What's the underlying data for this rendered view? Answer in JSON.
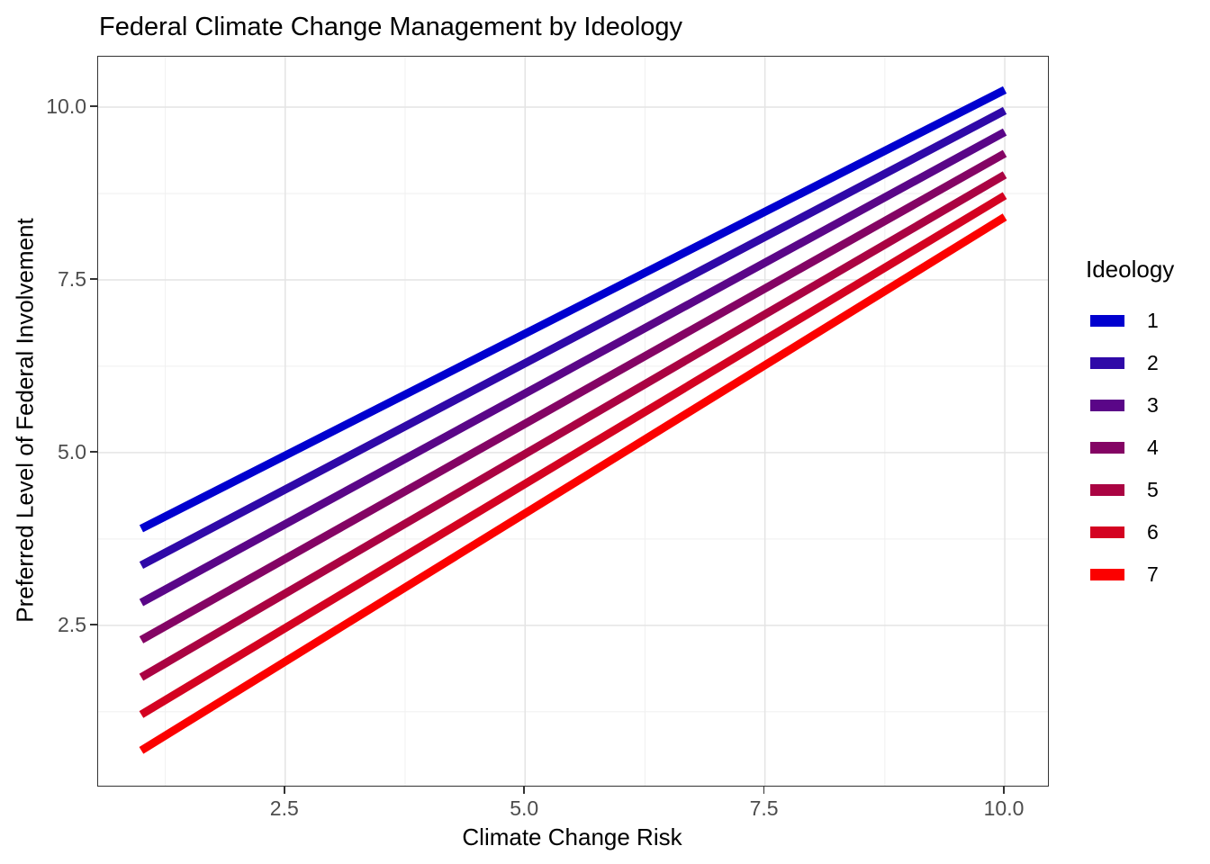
{
  "page": {
    "title": "Federal Climate Change Management by Ideology"
  },
  "chart_data": {
    "type": "line",
    "title": "Federal Climate Change Management by Ideology",
    "xlabel": "Climate Change Risk",
    "ylabel": "Preferred Level of Federal Involvement",
    "xlim": [
      0.55,
      10.45
    ],
    "ylim": [
      0.18,
      10.73
    ],
    "grid": true,
    "legend_position": "right",
    "x_ticks": [
      {
        "v": 2.5,
        "label": "2.5"
      },
      {
        "v": 5.0,
        "label": "5.0"
      },
      {
        "v": 7.5,
        "label": "7.5"
      },
      {
        "v": 10.0,
        "label": "10.0"
      }
    ],
    "y_ticks": [
      {
        "v": 2.5,
        "label": "2.5"
      },
      {
        "v": 5.0,
        "label": "5.0"
      },
      {
        "v": 7.5,
        "label": "7.5"
      },
      {
        "v": 10.0,
        "label": "10.0"
      }
    ],
    "x_minor": [
      1.25,
      3.75,
      6.25,
      8.75
    ],
    "y_minor": [
      1.25,
      3.75,
      6.25,
      8.75
    ],
    "x": [
      1,
      10
    ],
    "series": [
      {
        "name": "1",
        "color": "#0000CF",
        "values": [
          3.9,
          10.25
        ]
      },
      {
        "name": "2",
        "color": "#2F09A8",
        "values": [
          3.37,
          9.95
        ]
      },
      {
        "name": "3",
        "color": "#5A0688",
        "values": [
          2.83,
          9.64
        ]
      },
      {
        "name": "4",
        "color": "#840464",
        "values": [
          2.29,
          9.33
        ]
      },
      {
        "name": "5",
        "color": "#AA0342",
        "values": [
          1.75,
          9.02
        ]
      },
      {
        "name": "6",
        "color": "#D40221",
        "values": [
          1.21,
          8.72
        ]
      },
      {
        "name": "7",
        "color": "#FB0100",
        "values": [
          0.69,
          8.41
        ]
      }
    ]
  },
  "legend": {
    "title": "Ideology"
  },
  "style": {
    "grid_major_color": "#E4E4E4",
    "grid_minor_color": "#F1F1F1",
    "panel_border_color": "#333333",
    "tick_color": "#333333",
    "tick_label_color": "#4D4D4D",
    "line_width": 9
  }
}
